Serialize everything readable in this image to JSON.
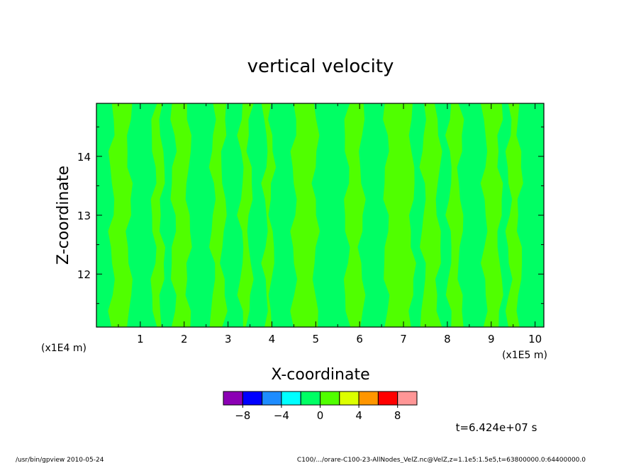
{
  "chart_data": {
    "type": "heatmap",
    "title": "vertical velocity",
    "xlabel": "X-coordinate",
    "ylabel": "Z-coordinate",
    "x_unit_label": "(x1E5 m)",
    "y_unit_label": "(x1E4 m)",
    "x_range": [
      0,
      10.2
    ],
    "y_range": [
      11.1,
      14.9
    ],
    "x_ticks": [
      "1",
      "2",
      "3",
      "4",
      "5",
      "6",
      "7",
      "8",
      "9",
      "10"
    ],
    "y_ticks": [
      "12",
      "13",
      "14"
    ],
    "colorbar": {
      "colors": [
        "#8b00b4",
        "#0000ff",
        "#1e8cff",
        "#00ffff",
        "#00ff64",
        "#50ff00",
        "#dcff00",
        "#ff9600",
        "#ff0000",
        "#ff9696"
      ],
      "tick_labels": [
        "−8",
        "−4",
        "0",
        "4",
        "8"
      ]
    },
    "field_colors": {
      "slightly_negative": "#00ff64",
      "slightly_positive": "#50ff00"
    },
    "positive_bands": [
      [
        0.35,
        0.75
      ],
      [
        1.3,
        1.5
      ],
      [
        1.75,
        2.1
      ],
      [
        2.65,
        2.9
      ],
      [
        3.3,
        3.5
      ],
      [
        3.85,
        4.0
      ],
      [
        4.5,
        5.0
      ],
      [
        5.7,
        6.05
      ],
      [
        6.6,
        7.2
      ],
      [
        7.45,
        7.8
      ],
      [
        8.05,
        8.3
      ],
      [
        8.85,
        9.2
      ],
      [
        9.4,
        9.65
      ]
    ],
    "time_label": "t=6.424e+07 s"
  },
  "footer": {
    "left": "/usr/bin/gpview   2010-05-24",
    "right": "C100/.../orare-C100-23-AllNodes_VelZ.nc@VelZ,z=1.1e5:1.5e5,t=63800000.0:64400000.0"
  }
}
